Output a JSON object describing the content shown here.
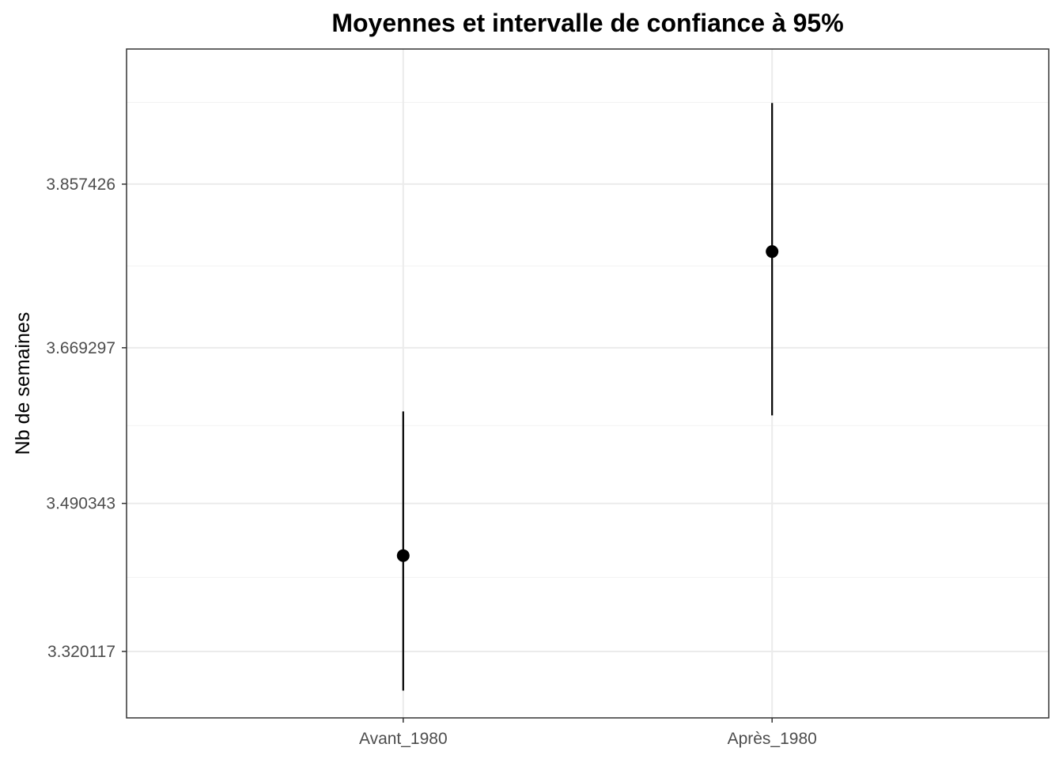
{
  "chart_data": {
    "type": "scatter",
    "title": "Moyennes et intervalle de confiance à 95%",
    "xlabel": "",
    "ylabel": "Nb de semaines",
    "categories": [
      "Avant_1980",
      "Après_1980"
    ],
    "series": [
      {
        "values": [
          3.4303,
          3.7799
        ],
        "ci_lower": [
          3.2751,
          3.5915
        ],
        "ci_upper": [
          3.5961,
          3.9508
        ]
      }
    ],
    "y_ticks": [
      3.320117,
      3.490343,
      3.669297,
      3.857426
    ],
    "y_tick_labels": [
      "3.320117",
      "3.490343",
      "3.669297",
      "3.857426"
    ],
    "ylim": [
      3.2437,
      4.0128
    ],
    "grid": true,
    "legend": "none",
    "colors": {
      "point": "#000000",
      "grid": "#ebebeb",
      "border": "#333333",
      "tick_label": "#4d4d4d"
    }
  }
}
